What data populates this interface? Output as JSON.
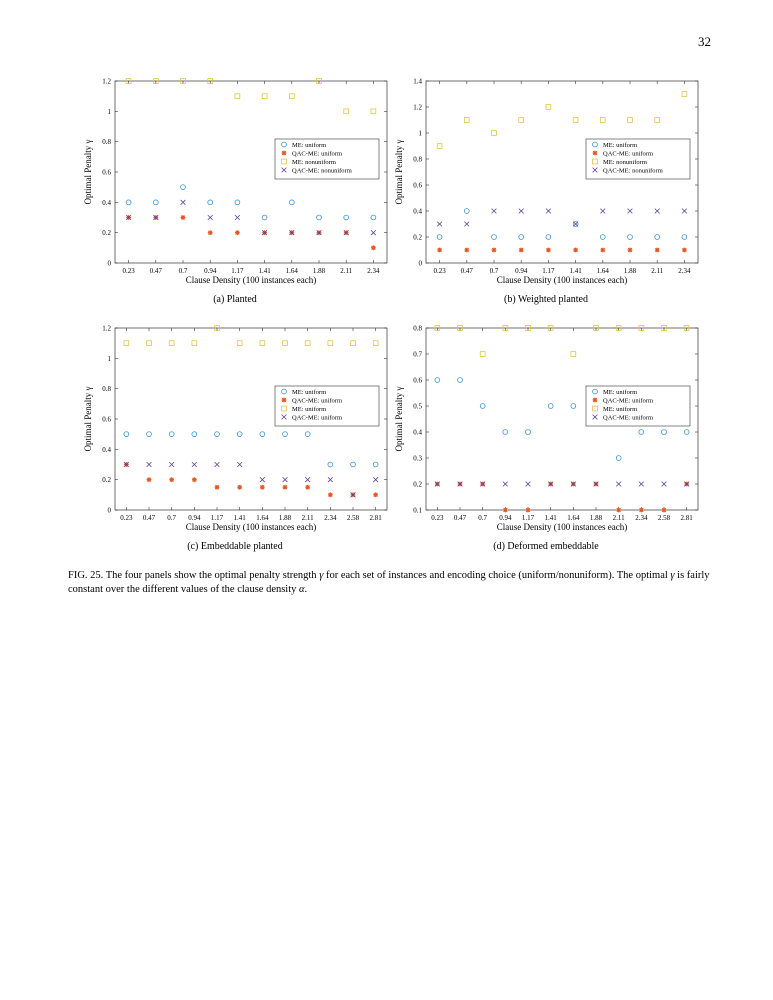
{
  "page_number": "32",
  "figure_caption_parts": [
    "FIG. 25. The four panels show the optimal penalty strength ",
    "γ",
    " for each set of instances and encoding choice (uniform/nonuniform). The optimal ",
    "γ",
    " is fairly constant over the different values of the clause density ",
    "α",
    "."
  ],
  "colors": {
    "series_blue": "#3a8fd0",
    "series_red": "#e8541f",
    "series_yellow": "#e3c34a",
    "series_purple": "#5a3f9a"
  },
  "chart_data": [
    {
      "type": "scatter",
      "caption": "(a) Planted",
      "xlabel": "Clause Density (100 instances each)",
      "ylabel": "Optimal Penalty γ",
      "categories": [
        "0.23",
        "0.47",
        "0.7",
        "0.94",
        "1.17",
        "1.41",
        "1.64",
        "1.88",
        "2.11",
        "2.34"
      ],
      "ylim": [
        0,
        1.2
      ],
      "yticks": [
        "0",
        "0.2",
        "0.4",
        "0.6",
        "0.8",
        "1",
        "1.2"
      ],
      "legend_position": "right",
      "series": [
        {
          "name": "ME: uniform",
          "marker": "circle",
          "color": "#3a8fd0",
          "values": [
            0.4,
            0.4,
            0.5,
            0.4,
            0.4,
            0.3,
            0.4,
            0.3,
            0.3,
            0.3
          ]
        },
        {
          "name": "QAC-ME: uniform",
          "marker": "star",
          "color": "#e8541f",
          "values": [
            0.3,
            0.3,
            0.3,
            0.2,
            0.2,
            0.2,
            0.2,
            0.2,
            0.2,
            0.1
          ]
        },
        {
          "name": "ME: nonuniform",
          "marker": "square",
          "color": "#e3c34a",
          "values": [
            1.2,
            1.2,
            1.2,
            1.2,
            1.1,
            1.1,
            1.1,
            1.2,
            1.0,
            1.0
          ]
        },
        {
          "name": "QAC-ME: nonuniform",
          "marker": "x",
          "color": "#5a3f9a",
          "values": [
            0.3,
            0.3,
            0.4,
            0.3,
            0.3,
            0.2,
            0.2,
            0.2,
            0.2,
            0.2
          ]
        }
      ]
    },
    {
      "type": "scatter",
      "caption": "(b) Weighted planted",
      "xlabel": "Clause Density (100 instances each)",
      "ylabel": "Optimal Penalty γ",
      "categories": [
        "0.23",
        "0.47",
        "0.7",
        "0.94",
        "1.17",
        "1.41",
        "1.64",
        "1.88",
        "2.11",
        "2.34"
      ],
      "ylim": [
        0,
        1.4
      ],
      "yticks": [
        "0",
        "0.2",
        "0.4",
        "0.6",
        "0.8",
        "1",
        "1.2",
        "1.4"
      ],
      "legend_position": "right",
      "series": [
        {
          "name": "ME: uniform",
          "marker": "circle",
          "color": "#3a8fd0",
          "values": [
            0.2,
            0.4,
            0.2,
            0.2,
            0.2,
            0.3,
            0.2,
            0.2,
            0.2,
            0.2
          ]
        },
        {
          "name": "QAC-ME: uniform",
          "marker": "star",
          "color": "#e8541f",
          "values": [
            0.1,
            0.1,
            0.1,
            0.1,
            0.1,
            0.1,
            0.1,
            0.1,
            0.1,
            0.1
          ]
        },
        {
          "name": "ME: nonuniform",
          "marker": "square",
          "color": "#e3c34a",
          "values": [
            0.9,
            1.1,
            1.0,
            1.1,
            1.2,
            1.1,
            1.1,
            1.1,
            1.1,
            1.3
          ]
        },
        {
          "name": "QAC-ME: nonuniform",
          "marker": "x",
          "color": "#5a3f9a",
          "values": [
            0.3,
            0.3,
            0.4,
            0.4,
            0.4,
            0.3,
            0.4,
            0.4,
            0.4,
            0.4
          ]
        }
      ]
    },
    {
      "type": "scatter",
      "caption": "(c) Embeddable planted",
      "xlabel": "Clause Density (100 instances each)",
      "ylabel": "Optimal Penalty γ",
      "categories": [
        "0.23",
        "0.47",
        "0.7",
        "0.94",
        "1.17",
        "1.41",
        "1.64",
        "1.88",
        "2.11",
        "2.34",
        "2.58",
        "2.81"
      ],
      "ylim": [
        0,
        1.2
      ],
      "yticks": [
        "0",
        "0.2",
        "0.4",
        "0.6",
        "0.8",
        "1",
        "1.2"
      ],
      "legend_position": "right",
      "series": [
        {
          "name": "ME: uniform",
          "marker": "circle",
          "color": "#3a8fd0",
          "values": [
            0.5,
            0.5,
            0.5,
            0.5,
            0.5,
            0.5,
            0.5,
            0.5,
            0.5,
            0.3,
            0.3,
            0.3
          ]
        },
        {
          "name": "QAC-ME: uniform",
          "marker": "star",
          "color": "#e8541f",
          "values": [
            0.3,
            0.2,
            0.2,
            0.2,
            0.15,
            0.15,
            0.15,
            0.15,
            0.15,
            0.1,
            0.1,
            0.1
          ]
        },
        {
          "name": "ME: uniform",
          "marker": "square",
          "color": "#e3c34a",
          "values": [
            1.1,
            1.1,
            1.1,
            1.1,
            1.2,
            1.1,
            1.1,
            1.1,
            1.1,
            1.1,
            1.1,
            1.1
          ]
        },
        {
          "name": "QAC-ME: uniform",
          "marker": "x",
          "color": "#5a3f9a",
          "values": [
            0.3,
            0.3,
            0.3,
            0.3,
            0.3,
            0.3,
            0.2,
            0.2,
            0.2,
            0.2,
            0.1,
            0.2
          ]
        }
      ]
    },
    {
      "type": "scatter",
      "caption": "(d) Deformed embeddable",
      "xlabel": "Clause Density (100 instances each)",
      "ylabel": "Optimal Penalty γ",
      "categories": [
        "0.23",
        "0.47",
        "0.7",
        "0.94",
        "1.17",
        "1.41",
        "1.64",
        "1.88",
        "2.11",
        "2.34",
        "2.58",
        "2.81"
      ],
      "ylim": [
        0.1,
        0.8
      ],
      "yticks": [
        "0.1",
        "0.2",
        "0.3",
        "0.4",
        "0.5",
        "0.6",
        "0.7",
        "0.8"
      ],
      "legend_position": "right",
      "series": [
        {
          "name": "ME: uniform",
          "marker": "circle",
          "color": "#3a8fd0",
          "values": [
            0.6,
            0.6,
            0.5,
            0.4,
            0.4,
            0.5,
            0.5,
            0.5,
            0.3,
            0.4,
            0.4,
            0.4
          ]
        },
        {
          "name": "QAC-ME: uniform",
          "marker": "star",
          "color": "#e8541f",
          "values": [
            0.2,
            0.2,
            0.2,
            0.1,
            0.1,
            0.2,
            0.2,
            0.2,
            0.1,
            0.1,
            0.1,
            0.2
          ]
        },
        {
          "name": "ME: uniform",
          "marker": "square",
          "color": "#e3c34a",
          "values": [
            0.8,
            0.8,
            0.7,
            0.8,
            0.8,
            0.8,
            0.7,
            0.8,
            0.8,
            0.8,
            0.8,
            0.8
          ]
        },
        {
          "name": "QAC-ME: uniform",
          "marker": "x",
          "color": "#5a3f9a",
          "values": [
            0.2,
            0.2,
            0.2,
            0.2,
            0.2,
            0.2,
            0.2,
            0.2,
            0.2,
            0.2,
            0.2,
            0.2
          ]
        }
      ]
    }
  ]
}
